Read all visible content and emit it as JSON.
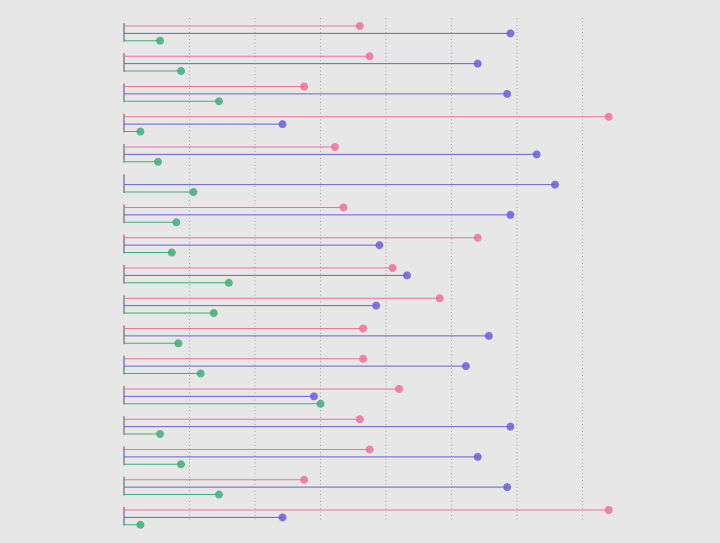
{
  "colors": {
    "background": "#e8e7e7",
    "grid": "#6f6f6f",
    "axis": "#555555",
    "series": [
      "#f0719a",
      "#6a5fd8",
      "#3fae7a"
    ]
  },
  "chart_data": {
    "type": "lollipop",
    "orientation": "horizontal",
    "grid": "vertical-dotted",
    "legend": "none",
    "title": "",
    "xlabel": "",
    "ylabel": "",
    "xlim": [
      0,
      7.5
    ],
    "xticks": [
      0,
      1,
      2,
      3,
      4,
      5,
      6,
      7
    ],
    "groups": [
      {
        "values": [
          3.6,
          5.9,
          0.55
        ]
      },
      {
        "values": [
          3.75,
          5.4,
          0.87
        ]
      },
      {
        "values": [
          2.75,
          5.85,
          1.45
        ]
      },
      {
        "values": [
          7.4,
          2.42,
          0.25
        ]
      },
      {
        "values": [
          3.22,
          6.3,
          0.52
        ]
      },
      {
        "values": [
          null,
          6.58,
          1.06
        ]
      },
      {
        "values": [
          3.35,
          5.9,
          0.8
        ]
      },
      {
        "values": [
          5.4,
          3.9,
          0.73
        ]
      },
      {
        "values": [
          4.1,
          4.32,
          1.6
        ]
      },
      {
        "values": [
          4.82,
          3.85,
          1.37
        ]
      },
      {
        "values": [
          3.65,
          5.57,
          0.83
        ]
      },
      {
        "values": [
          3.65,
          5.22,
          1.17
        ]
      },
      {
        "values": [
          4.2,
          2.9,
          3.0
        ]
      },
      {
        "values": [
          3.6,
          5.9,
          0.55
        ]
      },
      {
        "values": [
          3.75,
          5.4,
          0.87
        ]
      },
      {
        "values": [
          2.75,
          5.85,
          1.45
        ]
      },
      {
        "values": [
          7.4,
          2.42,
          0.25
        ]
      }
    ]
  }
}
